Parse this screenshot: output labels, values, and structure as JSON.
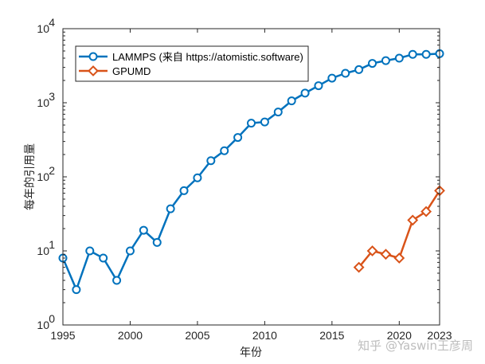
{
  "chart_data": {
    "type": "line",
    "title": "",
    "xlabel": "年份",
    "ylabel": "每年的引用量",
    "yscale": "log",
    "xlim": [
      1995,
      2023
    ],
    "ylim": [
      1,
      10000
    ],
    "xticks": [
      1995,
      2000,
      2005,
      2010,
      2015,
      2020,
      2023
    ],
    "xtick_labels": [
      "1995",
      "2000",
      "2005",
      "2010",
      "2015",
      "2020",
      "2023"
    ],
    "yticks": [
      1,
      10,
      100,
      1000,
      10000
    ],
    "ytick_labels": [
      {
        "base": "10",
        "exp": "0"
      },
      {
        "base": "10",
        "exp": "1"
      },
      {
        "base": "10",
        "exp": "2"
      },
      {
        "base": "10",
        "exp": "3"
      },
      {
        "base": "10",
        "exp": "4"
      }
    ],
    "grid": false,
    "legend_position": "top-left",
    "series": [
      {
        "name": "LAMMPS (来自 https://atomistic.software)",
        "color": "#0072BD",
        "marker": "circle",
        "x": [
          1995,
          1996,
          1997,
          1998,
          1999,
          2000,
          2001,
          2002,
          2003,
          2004,
          2005,
          2006,
          2007,
          2008,
          2009,
          2010,
          2011,
          2012,
          2013,
          2014,
          2015,
          2016,
          2017,
          2018,
          2019,
          2020,
          2021,
          2022,
          2023
        ],
        "y": [
          8,
          3,
          10,
          8,
          4,
          10,
          19,
          13,
          37,
          65,
          97,
          165,
          225,
          340,
          530,
          550,
          750,
          1060,
          1350,
          1700,
          2150,
          2500,
          2800,
          3400,
          3700,
          4000,
          4500,
          4500,
          4600
        ]
      },
      {
        "name": "GPUMD",
        "color": "#D95319",
        "marker": "diamond",
        "x": [
          2017,
          2018,
          2019,
          2020,
          2021,
          2022,
          2023
        ],
        "y": [
          6,
          10,
          9,
          8,
          26,
          34,
          65
        ]
      }
    ]
  },
  "watermark": "知乎 @Yaswin王彦周"
}
